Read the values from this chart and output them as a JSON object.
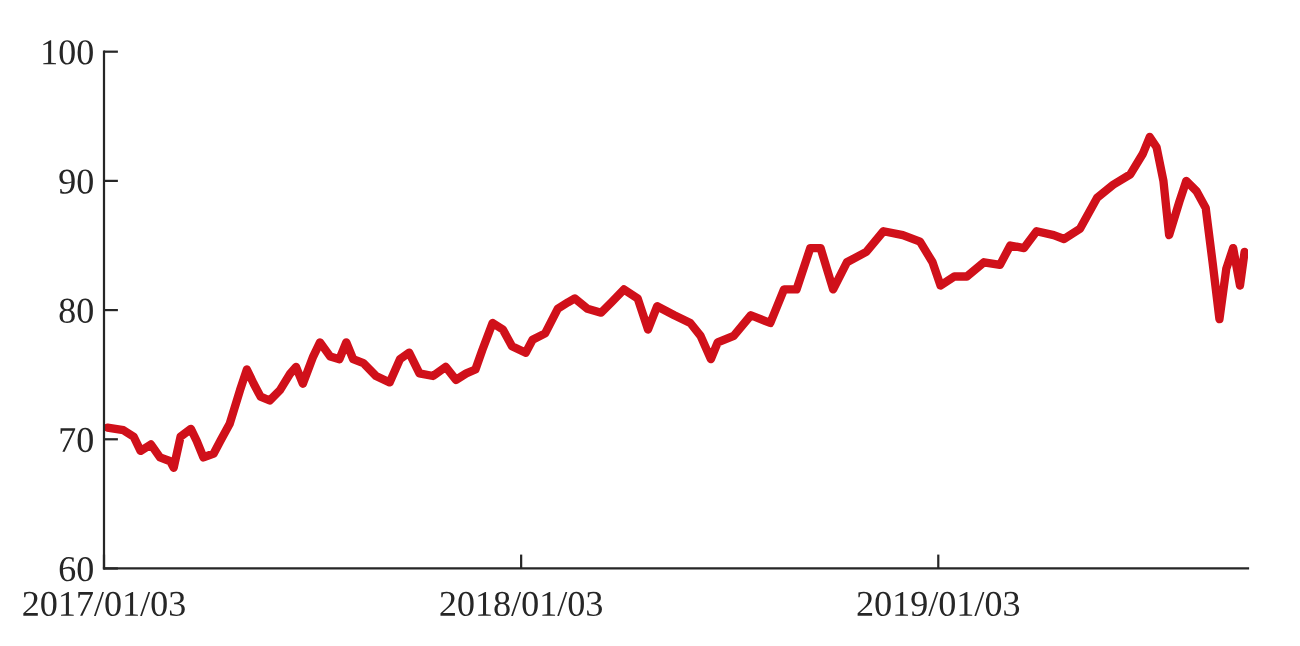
{
  "chart_data": {
    "type": "line",
    "x": [
      "2017-01-06",
      "2017-01-20",
      "2017-01-29",
      "2017-02-04",
      "2017-02-13",
      "2017-02-21",
      "2017-03-02",
      "2017-03-05",
      "2017-03-11",
      "2017-03-20",
      "2017-03-25",
      "2017-03-31",
      "2017-04-09",
      "2017-04-15",
      "2017-04-23",
      "2017-05-02",
      "2017-05-08",
      "2017-05-14",
      "2017-05-20",
      "2017-05-28",
      "2017-06-06",
      "2017-06-15",
      "2017-06-20",
      "2017-06-26",
      "2017-07-05",
      "2017-07-11",
      "2017-07-20",
      "2017-07-28",
      "2017-08-03",
      "2017-08-09",
      "2017-08-18",
      "2017-08-29",
      "2017-09-10",
      "2017-09-19",
      "2017-09-27",
      "2017-10-06",
      "2017-10-18",
      "2017-10-29",
      "2017-11-07",
      "2017-11-16",
      "2017-11-24",
      "2017-11-30",
      "2017-12-09",
      "2017-12-18",
      "2017-12-26",
      "2018-01-07",
      "2018-01-13",
      "2018-01-24",
      "2018-02-04",
      "2018-02-13",
      "2018-02-19",
      "2018-03-02",
      "2018-03-14",
      "2018-03-23",
      "2018-04-03",
      "2018-04-15",
      "2018-04-24",
      "2018-05-02",
      "2018-05-17",
      "2018-05-31",
      "2018-06-09",
      "2018-06-18",
      "2018-06-24",
      "2018-07-08",
      "2018-07-23",
      "2018-08-09",
      "2018-08-21",
      "2018-09-01",
      "2018-09-13",
      "2018-09-22",
      "2018-10-03",
      "2018-10-15",
      "2018-11-01",
      "2018-11-16",
      "2018-12-03",
      "2018-12-18",
      "2018-12-29",
      "2019-01-05",
      "2019-01-17",
      "2019-01-28",
      "2019-02-12",
      "2019-02-26",
      "2019-03-07",
      "2019-03-19",
      "2019-03-30",
      "2019-04-14",
      "2019-04-23",
      "2019-05-07",
      "2019-05-22",
      "2019-06-05",
      "2019-06-20",
      "2019-07-01",
      "2019-07-07",
      "2019-07-13",
      "2019-07-19",
      "2019-07-24",
      "2019-08-02",
      "2019-08-08",
      "2019-08-17",
      "2019-08-25",
      "2019-08-31",
      "2019-09-06",
      "2019-09-12",
      "2019-09-18",
      "2019-09-24",
      "2019-09-28"
    ],
    "series": [
      {
        "color": "#d0101a",
        "values": [
          70.9,
          70.7,
          70.2,
          69.1,
          69.6,
          68.6,
          68.3,
          67.8,
          70.2,
          70.8,
          69.9,
          68.6,
          68.9,
          69.9,
          71.2,
          73.8,
          75.4,
          74.3,
          73.3,
          73.0,
          73.8,
          75.1,
          75.6,
          74.3,
          76.4,
          77.5,
          76.4,
          76.2,
          77.5,
          76.2,
          75.9,
          74.9,
          74.4,
          76.2,
          76.7,
          75.1,
          74.9,
          75.6,
          74.6,
          75.1,
          75.4,
          76.9,
          79.0,
          78.5,
          77.2,
          76.7,
          77.7,
          78.2,
          80.1,
          80.6,
          80.9,
          80.1,
          79.8,
          80.6,
          81.6,
          80.9,
          78.5,
          80.3,
          79.6,
          79.0,
          78.0,
          76.2,
          77.5,
          78.0,
          79.6,
          79.0,
          81.6,
          81.6,
          84.8,
          84.8,
          81.6,
          83.7,
          84.5,
          86.1,
          85.8,
          85.3,
          83.7,
          81.9,
          82.6,
          82.6,
          83.7,
          83.5,
          85.0,
          84.8,
          86.1,
          85.8,
          85.5,
          86.3,
          88.7,
          89.7,
          90.5,
          92.1,
          93.4,
          92.6,
          90.0,
          85.8,
          88.4,
          90.0,
          89.2,
          87.9,
          83.7,
          79.3,
          83.2,
          84.8,
          81.9,
          84.5
        ]
      }
    ],
    "xlim": [
      "2017-01-03",
      "2019-10-01"
    ],
    "xticks": [
      {
        "value": "2017-01-03",
        "label": "2017/01/03"
      },
      {
        "value": "2018-01-03",
        "label": "2018/01/03"
      },
      {
        "value": "2019-01-03",
        "label": "2019/01/03"
      }
    ],
    "ylim": [
      60,
      100
    ],
    "yticks": [
      60,
      70,
      80,
      90,
      100
    ],
    "grid": false,
    "marker": "none",
    "line_style": "solid"
  }
}
